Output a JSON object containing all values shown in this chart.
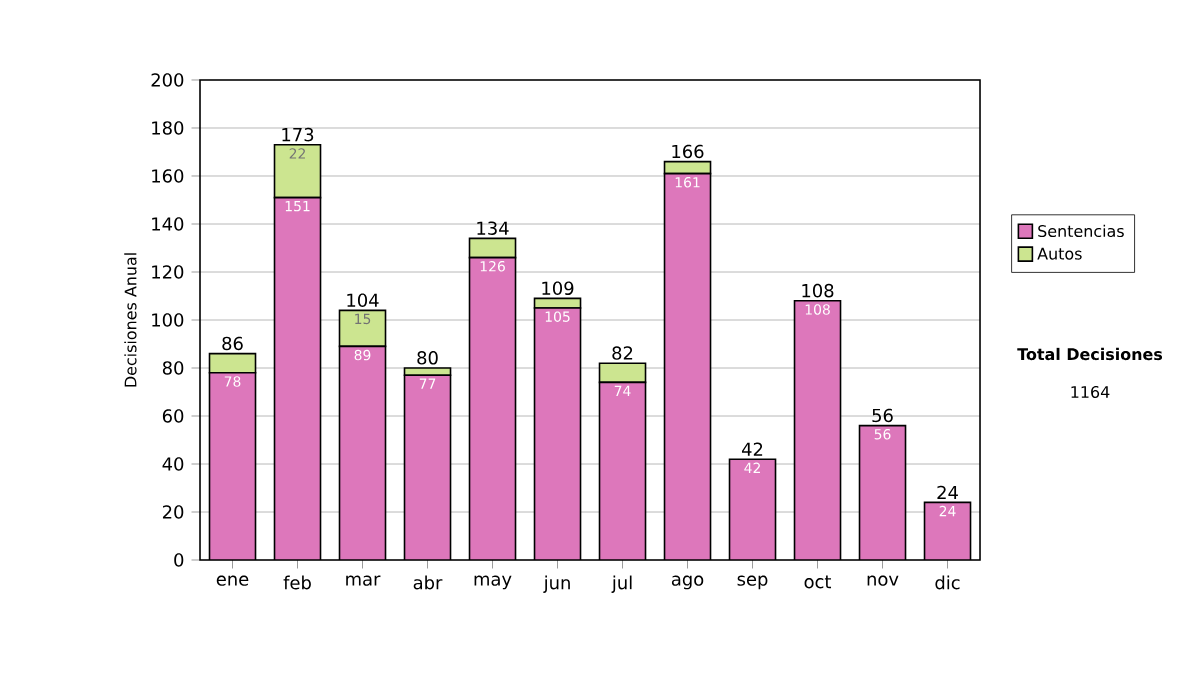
{
  "chart_data": {
    "type": "bar",
    "stacked": true,
    "ylabel": "Decisiones Anual",
    "categories": [
      "ene",
      "feb",
      "mar",
      "abr",
      "may",
      "jun",
      "jul",
      "ago",
      "sep",
      "oct",
      "nov",
      "dic"
    ],
    "series": [
      {
        "name": "Sentencias",
        "color": "#dd77bb",
        "values": [
          78,
          151,
          89,
          77,
          126,
          105,
          74,
          161,
          42,
          108,
          56,
          24
        ],
        "value_labels": [
          "78",
          "151",
          "89",
          "77",
          "126",
          "105",
          "74",
          "161",
          "42",
          "108",
          "56",
          "24"
        ]
      },
      {
        "name": "Autos",
        "color": "#cce590",
        "values": [
          8,
          22,
          15,
          3,
          8,
          4,
          8,
          5,
          0,
          0,
          0,
          0
        ],
        "value_labels": [
          null,
          "22",
          "15",
          null,
          null,
          null,
          null,
          null,
          null,
          null,
          null,
          null
        ]
      }
    ],
    "totals": [
      "86",
      "173",
      "104",
      "80",
      "134",
      "109",
      "82",
      "166",
      "42",
      "108",
      "56",
      "24"
    ],
    "ylim": [
      0,
      200
    ],
    "yticks": [
      0,
      20,
      40,
      60,
      80,
      100,
      120,
      140,
      160,
      180,
      200
    ],
    "grid": "y",
    "legend": "right",
    "annotations": [
      "**Total Decisiones**",
      "1164"
    ]
  }
}
